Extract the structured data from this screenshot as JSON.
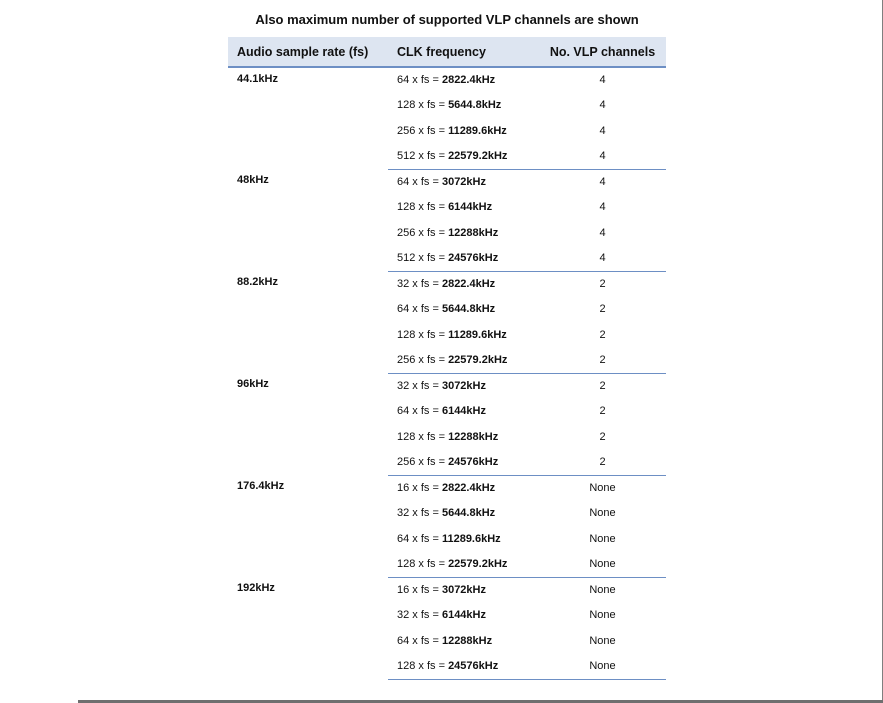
{
  "caption": "Also maximum number of supported VLP channels are shown",
  "headers": {
    "rate": "Audio sample rate (fs)",
    "clk": "CLK frequency",
    "channels": "No. VLP channels"
  },
  "groups": [
    {
      "rate": "44.1kHz",
      "rows": [
        {
          "mult": "64 x fs = ",
          "freq": "2822.4kHz",
          "channels": "4"
        },
        {
          "mult": "128 x fs = ",
          "freq": "5644.8kHz",
          "channels": "4"
        },
        {
          "mult": "256 x fs = ",
          "freq": "11289.6kHz",
          "channels": "4"
        },
        {
          "mult": "512 x fs = ",
          "freq": "22579.2kHz",
          "channels": "4"
        }
      ]
    },
    {
      "rate": "48kHz",
      "rows": [
        {
          "mult": "64 x fs = ",
          "freq": "3072kHz",
          "channels": "4"
        },
        {
          "mult": "128 x fs = ",
          "freq": "6144kHz",
          "channels": "4"
        },
        {
          "mult": "256 x fs = ",
          "freq": "12288kHz",
          "channels": "4"
        },
        {
          "mult": "512 x fs = ",
          "freq": "24576kHz",
          "channels": "4"
        }
      ]
    },
    {
      "rate": "88.2kHz",
      "rows": [
        {
          "mult": "32 x fs = ",
          "freq": "2822.4kHz",
          "channels": "2"
        },
        {
          "mult": "64 x fs = ",
          "freq": "5644.8kHz",
          "channels": "2"
        },
        {
          "mult": "128 x fs = ",
          "freq": "11289.6kHz",
          "channels": "2"
        },
        {
          "mult": "256 x fs = ",
          "freq": "22579.2kHz",
          "channels": "2"
        }
      ]
    },
    {
      "rate": "96kHz",
      "rows": [
        {
          "mult": "32 x fs = ",
          "freq": "3072kHz",
          "channels": "2"
        },
        {
          "mult": "64 x fs = ",
          "freq": "6144kHz",
          "channels": "2"
        },
        {
          "mult": "128 x fs = ",
          "freq": "12288kHz",
          "channels": "2"
        },
        {
          "mult": "256 x fs = ",
          "freq": "24576kHz",
          "channels": "2"
        }
      ]
    },
    {
      "rate": "176.4kHz",
      "rows": [
        {
          "mult": "16 x fs = ",
          "freq": "2822.4kHz",
          "channels": "None"
        },
        {
          "mult": "32 x fs = ",
          "freq": "5644.8kHz",
          "channels": "None"
        },
        {
          "mult": "64 x fs = ",
          "freq": "11289.6kHz",
          "channels": "None"
        },
        {
          "mult": "128 x fs = ",
          "freq": "22579.2kHz",
          "channels": "None"
        }
      ]
    },
    {
      "rate": "192kHz",
      "rows": [
        {
          "mult": "16 x fs = ",
          "freq": "3072kHz",
          "channels": "None"
        },
        {
          "mult": "32 x fs = ",
          "freq": "6144kHz",
          "channels": "None"
        },
        {
          "mult": "64 x fs = ",
          "freq": "12288kHz",
          "channels": "None"
        },
        {
          "mult": "128 x fs = ",
          "freq": "24576kHz",
          "channels": "None"
        }
      ]
    }
  ]
}
